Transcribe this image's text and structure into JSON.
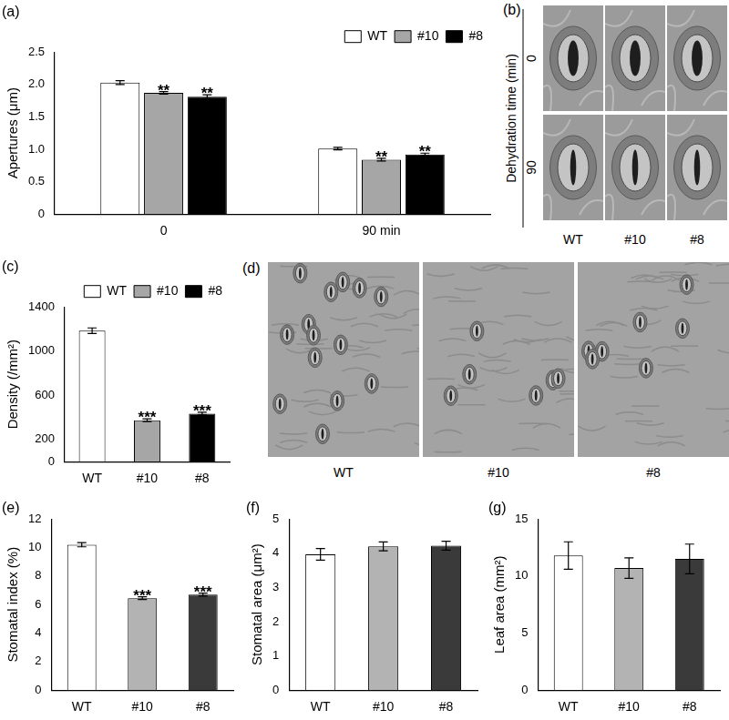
{
  "chart_data": [
    {
      "type": "bar",
      "title": "(a)",
      "y_label": "Apertures (μm)",
      "categories": [
        "0",
        "90 min"
      ],
      "series": [
        {
          "name": "WT",
          "color": "#ffffff",
          "values": [
            2.03,
            1.01
          ],
          "errors": [
            0.03,
            0.02
          ]
        },
        {
          "name": "#10",
          "color": "#a6a6a6",
          "values": [
            1.87,
            0.84
          ],
          "errors": [
            0.02,
            0.02
          ],
          "significance": [
            "**",
            "**"
          ]
        },
        {
          "name": "#8",
          "color": "#000000",
          "values": [
            1.81,
            0.92
          ],
          "errors": [
            0.03,
            0.02
          ],
          "significance": [
            "**",
            "**"
          ]
        }
      ],
      "ylim": [
        0,
        2.5
      ],
      "yticks": [
        0,
        0.5,
        {
          "value": 1,
          "label": "1.0"
        },
        1.5,
        {
          "value": 2,
          "label": "2.0"
        },
        2.5
      ],
      "grid": false,
      "legend": "top-right"
    },
    {
      "type": "bar",
      "title": "(c)",
      "y_label": "Density (/mm²)",
      "categories": [
        "WT",
        "#10",
        "#8"
      ],
      "series": [
        {
          "name": "WT",
          "color": "#ffffff",
          "values": [
            1185,
            null,
            null
          ],
          "errors": [
            25,
            null,
            null
          ]
        },
        {
          "name": "#10",
          "color": "#a6a6a6",
          "values": [
            null,
            375,
            null
          ],
          "errors": [
            null,
            12,
            null
          ],
          "significance": [
            null,
            "***",
            null
          ]
        },
        {
          "name": "#8",
          "color": "#000000",
          "values": [
            null,
            null,
            435
          ],
          "errors": [
            null,
            null,
            12
          ],
          "significance": [
            null,
            null,
            "***"
          ]
        }
      ],
      "ylim": [
        0,
        1400
      ],
      "yticks": [
        0,
        200,
        600,
        1000,
        1400
      ],
      "grid": false,
      "legend": "top-right"
    },
    {
      "type": "bar",
      "title": "(e)",
      "y_label": "Stomatal index (%)",
      "categories": [
        "WT",
        "#10",
        "#8"
      ],
      "values": [
        10.2,
        6.45,
        6.7
      ],
      "errors": [
        0.15,
        0.1,
        0.1
      ],
      "significance": [
        null,
        "***",
        "***"
      ],
      "colors": [
        "#ffffff",
        "#b3b3b3",
        "#3a3a3a"
      ],
      "ylim": [
        0,
        12
      ],
      "yticks": [
        0,
        2,
        4,
        6,
        8,
        10,
        12
      ],
      "grid": false
    },
    {
      "type": "bar",
      "title": "(f)",
      "y_label": "Stomatal area (μm²)",
      "categories": [
        "WT",
        "#10",
        "#8"
      ],
      "values": [
        3.97,
        4.2,
        4.22
      ],
      "errors": [
        0.17,
        0.13,
        0.13
      ],
      "colors": [
        "#ffffff",
        "#b3b3b3",
        "#3a3a3a"
      ],
      "ylim": [
        0,
        5
      ],
      "yticks": [
        0,
        1,
        2,
        3,
        4,
        5
      ],
      "grid": false
    },
    {
      "type": "bar",
      "title": "(g)",
      "y_label": "Leaf area (mm²)",
      "categories": [
        "WT",
        "#10",
        "#8"
      ],
      "values": [
        11.8,
        10.7,
        11.5
      ],
      "errors": [
        1.2,
        0.9,
        1.3
      ],
      "colors": [
        "#ffffff",
        "#b3b3b3",
        "#3a3a3a"
      ],
      "ylim": [
        0,
        15
      ],
      "yticks": [
        0,
        5,
        10,
        15
      ],
      "grid": false
    }
  ],
  "images": [
    {
      "title": "(b)",
      "y_label": "Dehydration time (min)",
      "rows": [
        "0",
        "90"
      ],
      "columns": [
        "WT",
        "#10",
        "#8"
      ]
    },
    {
      "title": "(d)",
      "columns": [
        "WT",
        "#10",
        "#8"
      ]
    }
  ]
}
